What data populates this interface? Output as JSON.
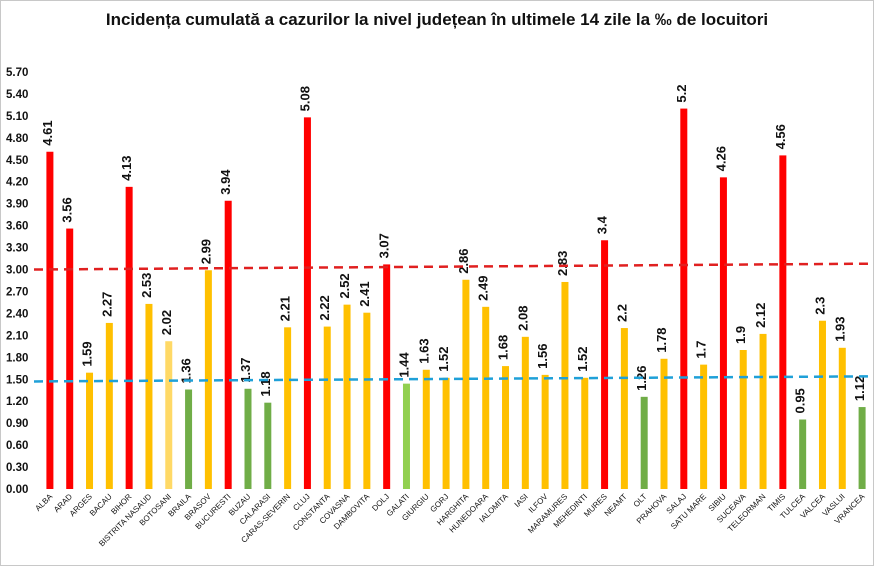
{
  "chart_data": {
    "type": "bar",
    "title": "Incidența cumulată a cazurilor la nivel județean în ultimele 14 zile la ‰ de locuitori",
    "xlabel": "",
    "ylabel": "",
    "ylim": [
      0,
      5.7
    ],
    "yticks": [
      "0.00",
      "0.30",
      "0.60",
      "0.90",
      "1.20",
      "1.50",
      "1.80",
      "2.10",
      "2.40",
      "2.70",
      "3.00",
      "3.30",
      "3.60",
      "3.90",
      "4.20",
      "4.50",
      "4.80",
      "5.10",
      "5.40",
      "5.70"
    ],
    "grid": false,
    "legend": "none",
    "categories": [
      "ALBA",
      "ARAD",
      "ARGES",
      "BACAU",
      "BIHOR",
      "BISTRITA NASAUD",
      "BOTOSANI",
      "BRAILA",
      "BRASOV",
      "BUCURESTI",
      "BUZAU",
      "CALARASI",
      "CARAS-SEVERIN",
      "CLUJ",
      "CONSTANTA",
      "COVASNA",
      "DAMBOVITA",
      "DOLJ",
      "GALATI",
      "GIURGIU",
      "GORJ",
      "HARGHITA",
      "HUNEDOARA",
      "IALOMITA",
      "IASI",
      "ILFOV",
      "MARAMURES",
      "MEHEDINTI",
      "MURES",
      "NEAMT",
      "OLT",
      "PRAHOVA",
      "SALAJ",
      "SATU MARE",
      "SIBIU",
      "SUCEAVA",
      "TELEORMAN",
      "TIMIS",
      "TULCEA",
      "VALCEA",
      "VASLUI",
      "VRANCEA"
    ],
    "values": [
      4.61,
      3.56,
      1.59,
      2.27,
      4.13,
      2.53,
      2.02,
      1.36,
      2.99,
      3.94,
      1.37,
      1.18,
      2.21,
      5.08,
      2.22,
      2.52,
      2.41,
      3.07,
      1.44,
      1.63,
      1.52,
      2.86,
      2.49,
      1.68,
      2.08,
      1.56,
      2.83,
      1.52,
      3.4,
      2.2,
      1.26,
      1.78,
      5.2,
      1.7,
      4.26,
      1.9,
      2.12,
      4.56,
      0.95,
      2.3,
      1.93,
      1.12
    ],
    "data_labels": [
      "4.61",
      "3.56",
      "1.59",
      "2.27",
      "4.13",
      "2.53",
      "2.02",
      "1.36",
      "2.99",
      "3.94",
      "1.37",
      "1.18",
      "2.21",
      "5.08",
      "2.22",
      "2.52",
      "2.41",
      "3.07",
      "1.44",
      "1.63",
      "1.52",
      "2.86",
      "2.49",
      "1.68",
      "2.08",
      "1.56",
      "2.83",
      "1.52",
      "3.4",
      "2.2",
      "1.26",
      "1.78",
      "5.2",
      "1.7",
      "4.26",
      "1.9",
      "2.12",
      "4.56",
      "0.95",
      "2.3",
      "1.93",
      "1.12"
    ],
    "bar_colors": [
      "#ff0000",
      "#ff0000",
      "#ffc000",
      "#ffc000",
      "#ff0000",
      "#ffc000",
      "#ffd966",
      "#70ad47",
      "#ffc000",
      "#ff0000",
      "#70ad47",
      "#70ad47",
      "#ffc000",
      "#ff0000",
      "#ffc000",
      "#ffc000",
      "#ffc000",
      "#ff0000",
      "#92d050",
      "#ffc000",
      "#ffc000",
      "#ffc000",
      "#ffc000",
      "#ffc000",
      "#ffc000",
      "#ffc000",
      "#ffc000",
      "#ffc000",
      "#ff0000",
      "#ffc000",
      "#70ad47",
      "#ffc000",
      "#ff0000",
      "#ffc000",
      "#ff0000",
      "#ffc000",
      "#ffc000",
      "#ff0000",
      "#70ad47",
      "#ffc000",
      "#ffc000",
      "#70ad47"
    ],
    "reference_lines": [
      {
        "start": 3.0,
        "end": 3.08,
        "color": "#e02020"
      },
      {
        "start": 1.47,
        "end": 1.54,
        "color": "#1fa0d8"
      }
    ]
  }
}
